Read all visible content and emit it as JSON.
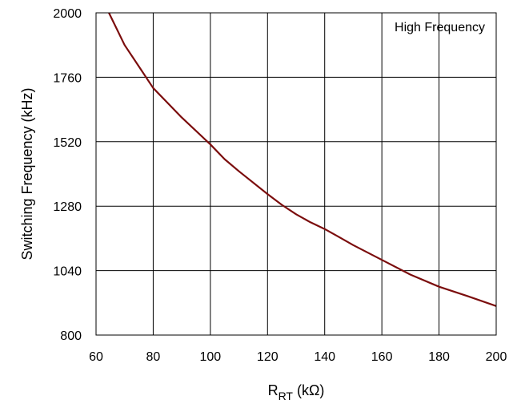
{
  "chart_data": {
    "type": "line",
    "title": "",
    "xlabel": {
      "main": "R",
      "sub": "RT",
      "unit": "(kΩ)"
    },
    "ylabel": "Switching Frequency (kHz)",
    "xlim": [
      60,
      200
    ],
    "ylim": [
      800,
      2000
    ],
    "xticks": [
      60,
      80,
      100,
      120,
      140,
      160,
      180,
      200
    ],
    "yticks": [
      800,
      1040,
      1280,
      1520,
      1760,
      2000
    ],
    "grid": true,
    "legend": {
      "placement": "top-right",
      "text": "High Frequency"
    },
    "series": [
      {
        "name": "High Frequency",
        "color": "#7b0d0d",
        "x": [
          64.5,
          70,
          75,
          80,
          90,
          100,
          105,
          110,
          120,
          125,
          130,
          135,
          140,
          145,
          150,
          160,
          170,
          180,
          190,
          200
        ],
        "y": [
          2000,
          1880,
          1800,
          1720,
          1610,
          1510,
          1455,
          1410,
          1325,
          1285,
          1250,
          1220,
          1195,
          1165,
          1135,
          1080,
          1025,
          980,
          945,
          908
        ]
      }
    ]
  }
}
